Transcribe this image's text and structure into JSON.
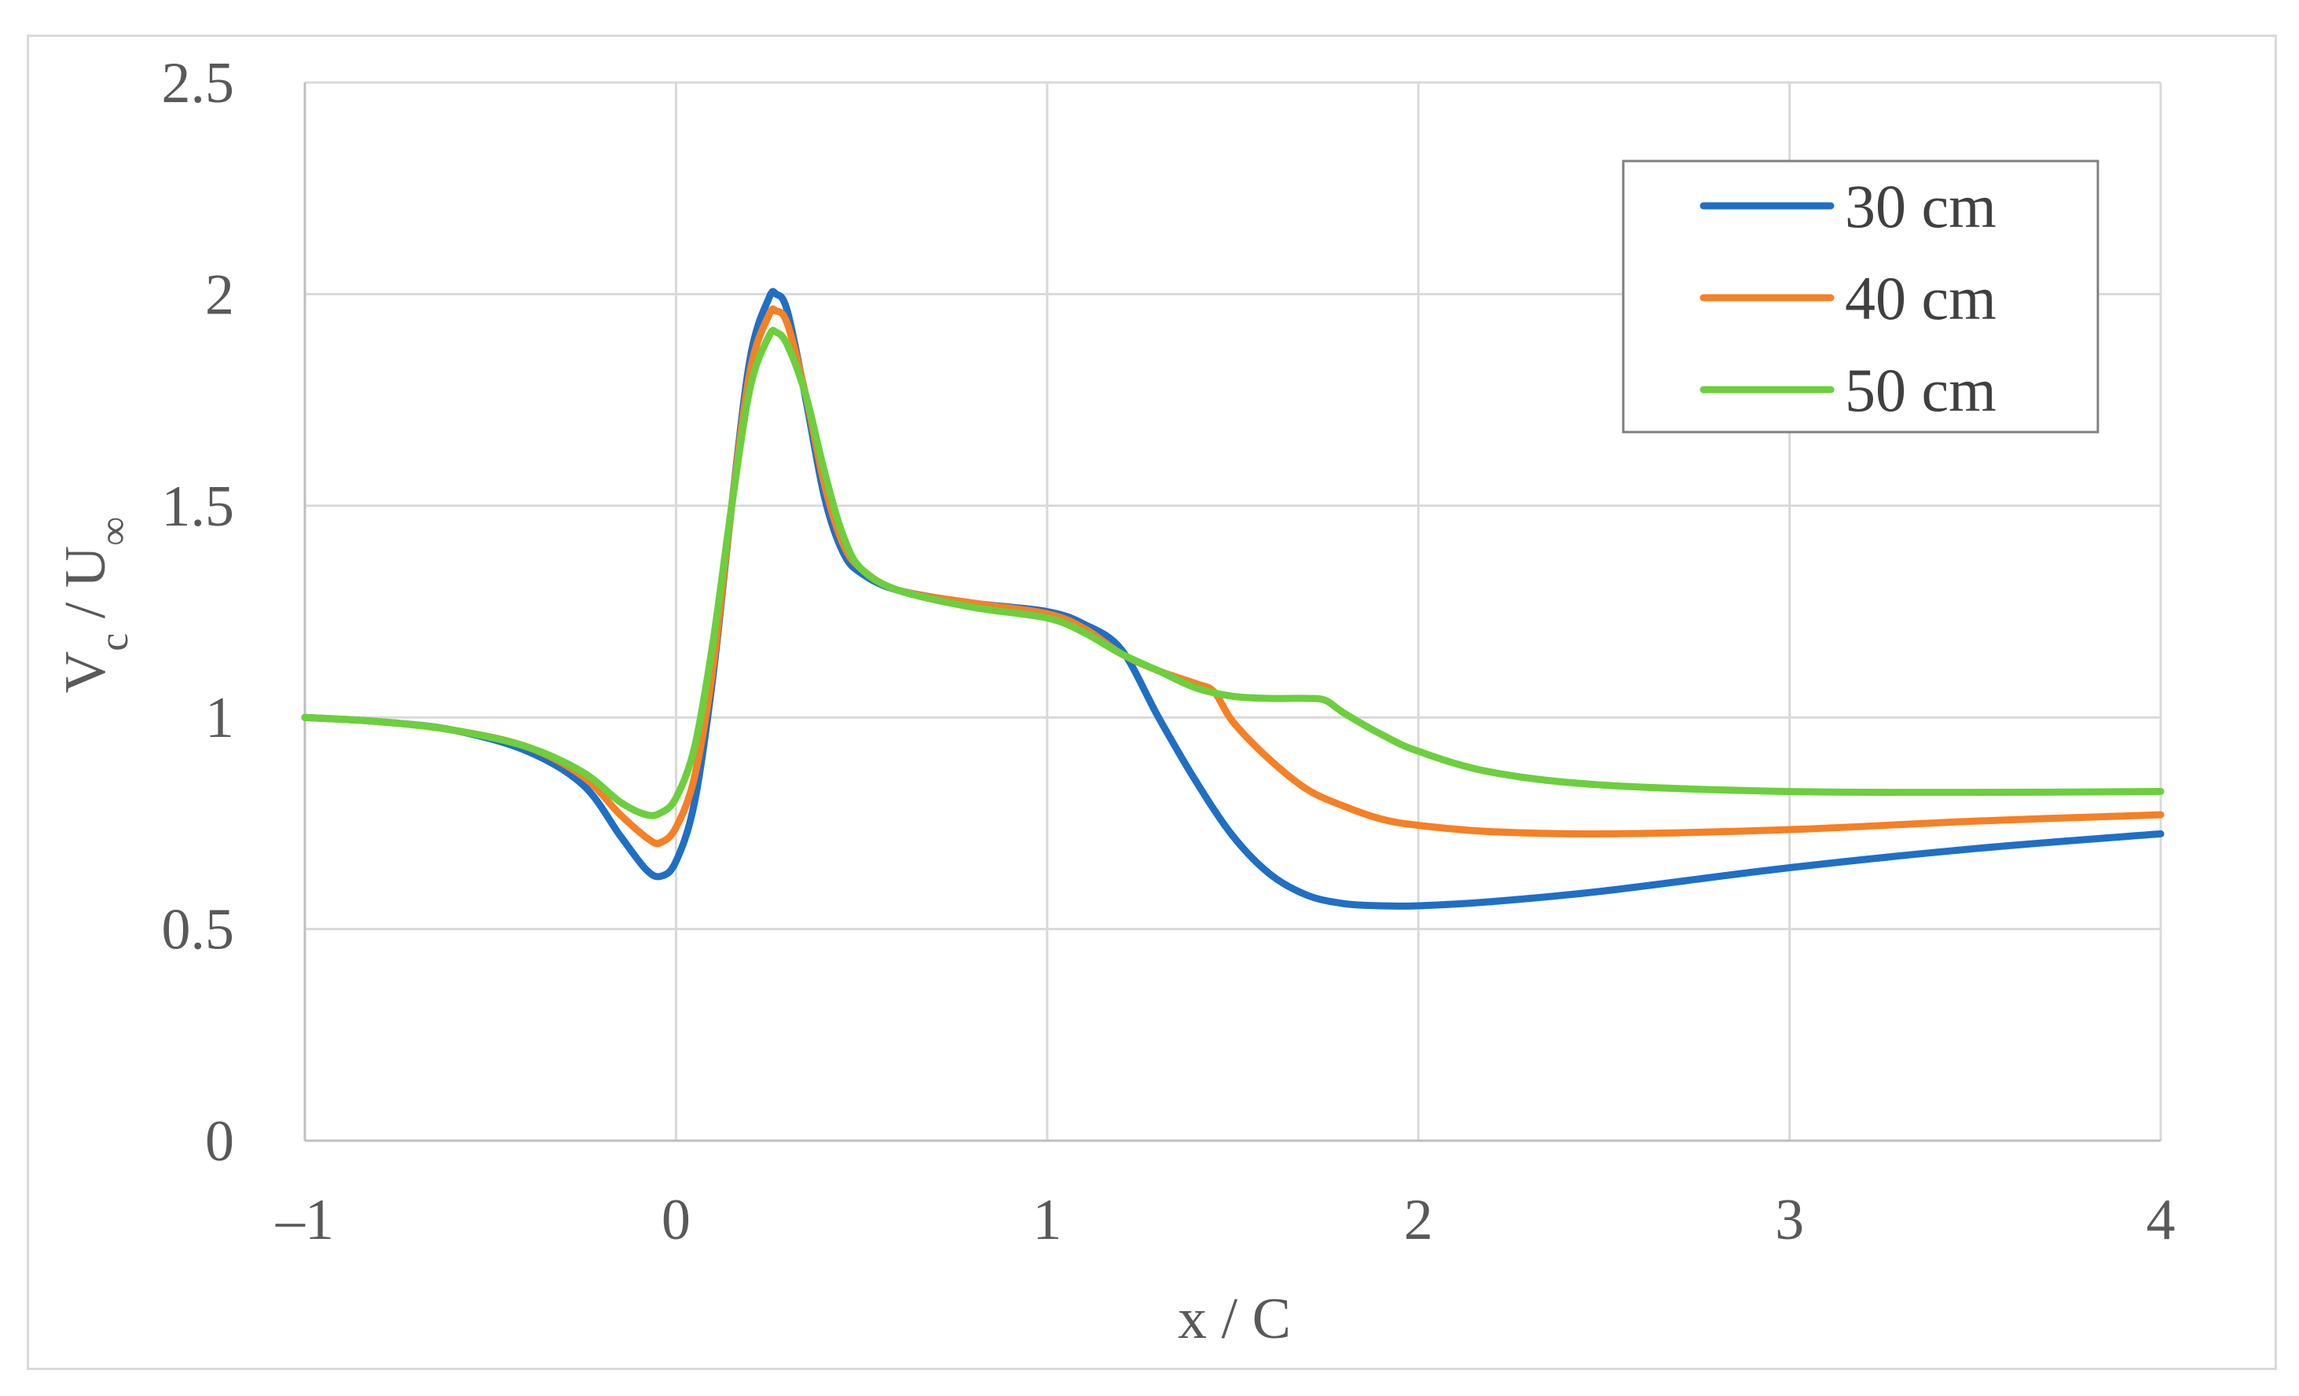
{
  "chart_data": {
    "type": "line",
    "xlabel": "x / C",
    "ylabel": {
      "main": "V",
      "sub1": "c",
      "mid": " / U",
      "sub2": "∞"
    },
    "xlim": [
      -1,
      4
    ],
    "ylim": [
      0,
      2.5
    ],
    "x_ticks": [
      -1,
      0,
      1,
      2,
      3,
      4
    ],
    "x_tick_labels": [
      "–1",
      "0",
      "1",
      "2",
      "3",
      "4"
    ],
    "y_ticks": [
      0,
      0.5,
      1,
      1.5,
      2,
      2.5
    ],
    "y_tick_labels": [
      "0",
      "0.5",
      "1",
      "1.5",
      "2",
      "2.5"
    ],
    "grid": true,
    "legend_position": "top-right",
    "series": [
      {
        "name": "30 cm",
        "color": "#1f6fc5",
        "points": [
          [
            -1,
            1.0
          ],
          [
            -0.8,
            0.99
          ],
          [
            -0.6,
            0.97
          ],
          [
            -0.4,
            0.92
          ],
          [
            -0.25,
            0.84
          ],
          [
            -0.15,
            0.72
          ],
          [
            -0.08,
            0.64
          ],
          [
            -0.04,
            0.625
          ],
          [
            0.0,
            0.66
          ],
          [
            0.05,
            0.8
          ],
          [
            0.1,
            1.1
          ],
          [
            0.15,
            1.5
          ],
          [
            0.2,
            1.85
          ],
          [
            0.25,
            1.99
          ],
          [
            0.27,
            2.0
          ],
          [
            0.3,
            1.96
          ],
          [
            0.35,
            1.75
          ],
          [
            0.4,
            1.52
          ],
          [
            0.45,
            1.39
          ],
          [
            0.5,
            1.34
          ],
          [
            0.6,
            1.3
          ],
          [
            0.8,
            1.27
          ],
          [
            1.0,
            1.25
          ],
          [
            1.1,
            1.22
          ],
          [
            1.2,
            1.16
          ],
          [
            1.3,
            1.0
          ],
          [
            1.4,
            0.85
          ],
          [
            1.5,
            0.72
          ],
          [
            1.6,
            0.63
          ],
          [
            1.7,
            0.58
          ],
          [
            1.8,
            0.56
          ],
          [
            1.9,
            0.555
          ],
          [
            2.0,
            0.555
          ],
          [
            2.2,
            0.565
          ],
          [
            2.5,
            0.59
          ],
          [
            3.0,
            0.645
          ],
          [
            3.5,
            0.69
          ],
          [
            4.0,
            0.725
          ]
        ]
      },
      {
        "name": "40 cm",
        "color": "#f58025",
        "points": [
          [
            -1,
            1.0
          ],
          [
            -0.8,
            0.99
          ],
          [
            -0.6,
            0.97
          ],
          [
            -0.4,
            0.93
          ],
          [
            -0.25,
            0.86
          ],
          [
            -0.15,
            0.77
          ],
          [
            -0.07,
            0.71
          ],
          [
            -0.04,
            0.705
          ],
          [
            0.0,
            0.74
          ],
          [
            0.05,
            0.86
          ],
          [
            0.1,
            1.12
          ],
          [
            0.15,
            1.5
          ],
          [
            0.2,
            1.82
          ],
          [
            0.25,
            1.95
          ],
          [
            0.27,
            1.96
          ],
          [
            0.3,
            1.93
          ],
          [
            0.35,
            1.76
          ],
          [
            0.4,
            1.55
          ],
          [
            0.45,
            1.41
          ],
          [
            0.5,
            1.35
          ],
          [
            0.6,
            1.3
          ],
          [
            0.8,
            1.27
          ],
          [
            1.0,
            1.245
          ],
          [
            1.1,
            1.21
          ],
          [
            1.2,
            1.15
          ],
          [
            1.3,
            1.11
          ],
          [
            1.4,
            1.08
          ],
          [
            1.45,
            1.06
          ],
          [
            1.5,
            0.99
          ],
          [
            1.6,
            0.9
          ],
          [
            1.7,
            0.83
          ],
          [
            1.8,
            0.79
          ],
          [
            1.9,
            0.76
          ],
          [
            2.0,
            0.745
          ],
          [
            2.2,
            0.73
          ],
          [
            2.5,
            0.725
          ],
          [
            3.0,
            0.735
          ],
          [
            3.5,
            0.755
          ],
          [
            4.0,
            0.77
          ]
        ]
      },
      {
        "name": "50 cm",
        "color": "#6ccf3d",
        "points": [
          [
            -1,
            1.0
          ],
          [
            -0.8,
            0.99
          ],
          [
            -0.6,
            0.97
          ],
          [
            -0.4,
            0.93
          ],
          [
            -0.25,
            0.87
          ],
          [
            -0.15,
            0.8
          ],
          [
            -0.08,
            0.77
          ],
          [
            -0.04,
            0.775
          ],
          [
            0.0,
            0.81
          ],
          [
            0.05,
            0.93
          ],
          [
            0.1,
            1.18
          ],
          [
            0.15,
            1.5
          ],
          [
            0.2,
            1.78
          ],
          [
            0.25,
            1.9
          ],
          [
            0.27,
            1.91
          ],
          [
            0.3,
            1.88
          ],
          [
            0.35,
            1.76
          ],
          [
            0.4,
            1.58
          ],
          [
            0.45,
            1.43
          ],
          [
            0.5,
            1.35
          ],
          [
            0.6,
            1.3
          ],
          [
            0.8,
            1.26
          ],
          [
            1.0,
            1.235
          ],
          [
            1.1,
            1.2
          ],
          [
            1.2,
            1.15
          ],
          [
            1.3,
            1.11
          ],
          [
            1.4,
            1.07
          ],
          [
            1.5,
            1.05
          ],
          [
            1.6,
            1.045
          ],
          [
            1.7,
            1.045
          ],
          [
            1.75,
            1.04
          ],
          [
            1.8,
            1.01
          ],
          [
            1.9,
            0.96
          ],
          [
            2.0,
            0.92
          ],
          [
            2.2,
            0.87
          ],
          [
            2.5,
            0.84
          ],
          [
            3.0,
            0.825
          ],
          [
            3.5,
            0.823
          ],
          [
            4.0,
            0.825
          ]
        ]
      }
    ]
  }
}
